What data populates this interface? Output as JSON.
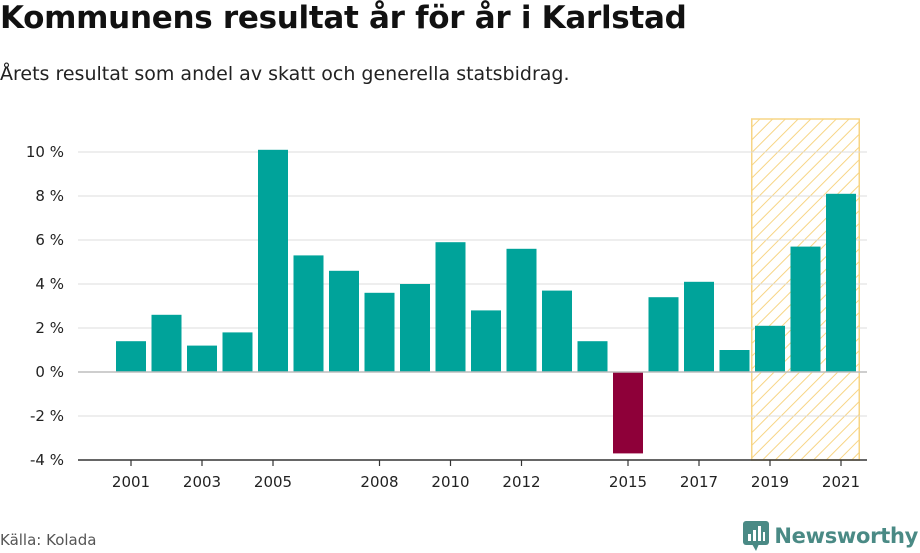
{
  "header": {
    "title": "Kommunens resultat år för år i Karlstad",
    "subtitle": "Årets resultat som andel av skatt och generella statsbidrag."
  },
  "footer": {
    "source": "Källa: Kolada",
    "brand": "Newsworthy"
  },
  "colors": {
    "positive": "#00a39a",
    "negative": "#8e0039",
    "highlight_hatch": "#f7d585",
    "grid": "#dcdcdc"
  },
  "chart_data": {
    "type": "bar",
    "title": "Kommunens resultat år för år i Karlstad",
    "subtitle": "Årets resultat som andel av skatt och generella statsbidrag.",
    "xlabel": "",
    "ylabel": "",
    "categories": [
      2001,
      2002,
      2003,
      2004,
      2005,
      2006,
      2007,
      2008,
      2009,
      2010,
      2011,
      2012,
      2013,
      2014,
      2015,
      2016,
      2017,
      2018,
      2019,
      2020,
      2021
    ],
    "values": [
      1.4,
      2.6,
      1.2,
      1.8,
      10.1,
      5.3,
      4.6,
      3.6,
      4.0,
      5.9,
      2.8,
      5.6,
      3.7,
      1.4,
      -3.7,
      3.4,
      4.1,
      1.0,
      2.1,
      5.7,
      8.1
    ],
    "ylim": [
      -4,
      11.5
    ],
    "yticks": [
      -4,
      -2,
      0,
      2,
      4,
      6,
      8,
      10
    ],
    "ytick_labels": [
      "-4 %",
      "-2 %",
      "0 %",
      "2 %",
      "4 %",
      "6 %",
      "8 %",
      "10 %"
    ],
    "xtick_labels": [
      "2001",
      "2003",
      "2005",
      "2008",
      "2010",
      "2012",
      "2015",
      "2017",
      "2019",
      "2021"
    ],
    "highlighted_range": [
      2019,
      2021
    ],
    "grid": true,
    "legend": "none"
  }
}
